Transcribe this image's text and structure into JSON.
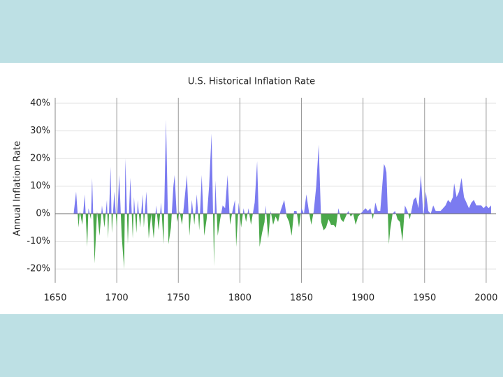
{
  "chart_data": {
    "type": "area",
    "title": "U.S. Historical Inflation Rate",
    "y_label": "Annual Inflation Rate",
    "x": [
      1665,
      1667,
      1669,
      1670,
      1672,
      1674,
      1676,
      1677,
      1679,
      1680,
      1682,
      1684,
      1686,
      1688,
      1690,
      1692,
      1693,
      1695,
      1696,
      1698,
      1700,
      1702,
      1704,
      1706,
      1707,
      1709,
      1711,
      1713,
      1714,
      1716,
      1717,
      1719,
      1721,
      1722,
      1724,
      1726,
      1728,
      1730,
      1732,
      1734,
      1736,
      1738,
      1740,
      1742,
      1744,
      1746,
      1747,
      1749,
      1751,
      1753,
      1755,
      1757,
      1759,
      1761,
      1763,
      1765,
      1767,
      1769,
      1771,
      1773,
      1775,
      1777,
      1779,
      1780,
      1782,
      1784,
      1786,
      1788,
      1790,
      1792,
      1794,
      1796,
      1797,
      1799,
      1801,
      1803,
      1805,
      1807,
      1809,
      1812,
      1814,
      1816,
      1818,
      1820,
      1821,
      1823,
      1825,
      1827,
      1829,
      1831,
      1833,
      1836,
      1838,
      1840,
      1842,
      1844,
      1846,
      1848,
      1850,
      1852,
      1854,
      1856,
      1858,
      1860,
      1862,
      1864,
      1866,
      1868,
      1870,
      1872,
      1874,
      1876,
      1878,
      1880,
      1882,
      1884,
      1886,
      1888,
      1890,
      1892,
      1894,
      1896,
      1898,
      1900,
      1902,
      1904,
      1906,
      1908,
      1910,
      1912,
      1914,
      1917,
      1918,
      1919,
      1921,
      1922,
      1924,
      1926,
      1928,
      1930,
      1932,
      1934,
      1936,
      1938,
      1941,
      1943,
      1945,
      1947,
      1949,
      1951,
      1953,
      1955,
      1957,
      1959,
      1961,
      1963,
      1965,
      1967,
      1969,
      1971,
      1973,
      1974,
      1976,
      1978,
      1980,
      1982,
      1984,
      1986,
      1988,
      1990,
      1992,
      1994,
      1996,
      1998,
      2000,
      2002,
      2004
    ],
    "values": [
      0,
      8,
      -5,
      1,
      -4,
      7,
      -12,
      2,
      -2,
      13,
      -18,
      1,
      -8,
      3,
      -5,
      5,
      -9,
      17,
      -7,
      8,
      -5,
      14,
      -8,
      -20,
      20,
      -11,
      13,
      -9,
      6,
      -7,
      5,
      -5,
      7,
      -5,
      8,
      -9,
      0,
      -9,
      3,
      -6,
      4,
      -11,
      34,
      -11,
      -5,
      10,
      14,
      -3,
      1,
      -4,
      5,
      14,
      -8,
      5,
      -4,
      7,
      -6,
      14,
      -8,
      -2,
      10,
      29,
      -19,
      12,
      -8,
      -2,
      3,
      2,
      14,
      -4,
      1,
      5,
      -12,
      4,
      -5,
      2,
      -3,
      2,
      -4,
      4,
      19,
      -12,
      -7,
      -3,
      3,
      -9,
      1,
      -4,
      -1,
      -3,
      1,
      5,
      -1,
      -3,
      -8,
      1,
      1,
      -5,
      2,
      0,
      7,
      1,
      -4,
      1,
      10,
      25,
      -3,
      -6,
      -5,
      -2,
      -4,
      -4,
      -5,
      2,
      -2,
      -3,
      -1,
      1,
      -1,
      0,
      -4,
      -1,
      0,
      1,
      2,
      1,
      2,
      -2,
      4,
      1,
      1,
      18,
      17,
      15,
      -11,
      -6,
      0,
      1,
      -2,
      -3,
      -10,
      3,
      1,
      -2,
      5,
      6,
      2,
      14,
      -1,
      8,
      1,
      0,
      3,
      1,
      1,
      1,
      2,
      3,
      5,
      4,
      6,
      11,
      6,
      8,
      13,
      6,
      4,
      2,
      4,
      5,
      3,
      3,
      3,
      2,
      3,
      2,
      3
    ],
    "positive_color": "#7b7bf0",
    "negative_color": "#4aa84a",
    "xlim": [
      1650,
      2008
    ],
    "ylim": [
      -25,
      42
    ],
    "xticks": [
      1650,
      1700,
      1750,
      1800,
      1850,
      1900,
      1950,
      2000
    ],
    "yticks": [
      {
        "value": 40,
        "label": "40%"
      },
      {
        "value": 30,
        "label": "30%"
      },
      {
        "value": 20,
        "label": "20%"
      },
      {
        "value": 10,
        "label": "10%"
      },
      {
        "value": 0,
        "label": "0%"
      },
      {
        "value": -10,
        "label": "-10%"
      },
      {
        "value": -20,
        "label": "-20%"
      }
    ],
    "grid": true
  }
}
